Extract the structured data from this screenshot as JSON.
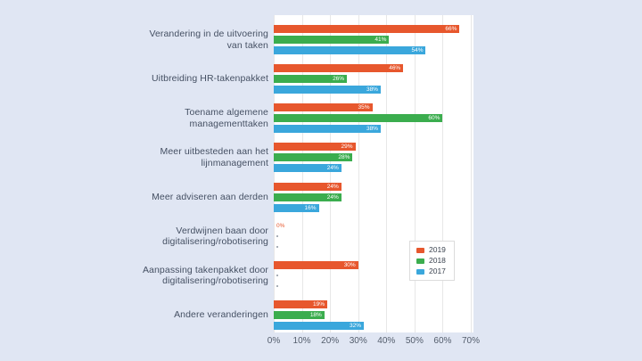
{
  "colors": {
    "background": "#e0e6f3",
    "plot_background": "#ffffff",
    "grid": "#e7e7e7",
    "series_2019": "#e7572d",
    "series_2018": "#3bad4e",
    "series_2017": "#3aa7dc",
    "category_text": "#455063",
    "axis_text": "#525c6b",
    "value_text": "#ffffff",
    "missing_mark": "#a9afb8"
  },
  "legend": {
    "items": [
      {
        "label": "2019",
        "color": "#e7572d"
      },
      {
        "label": "2018",
        "color": "#3bad4e"
      },
      {
        "label": "2017",
        "color": "#3aa7dc"
      }
    ]
  },
  "chart_data": {
    "type": "bar",
    "orientation": "horizontal",
    "title": "",
    "xlabel": "",
    "ylabel": "",
    "xlim": [
      0,
      70
    ],
    "grid": true,
    "legend_position": "right-lower",
    "value_suffix": "%",
    "x_tick_labels": [
      "0%",
      "10%",
      "20%",
      "30%",
      "40%",
      "50%",
      "60%",
      "70%"
    ],
    "categories": [
      "Verandering in de uitvoering van taken",
      "Uitbreiding HR-takenpakket",
      "Toename algemene managementtaken",
      "Meer uitbesteden aan het lijnmanagement",
      "Meer adviseren aan derden",
      "Verdwijnen baan door digitalisering/robotisering",
      "Aanpassing takenpakket door digitalisering/robotisering",
      "Andere veranderingen"
    ],
    "category_lines": [
      [
        "Verandering in de uitvoering",
        "van taken"
      ],
      [
        "Uitbreiding HR-takenpakket"
      ],
      [
        "Toename algemene",
        "managementtaken"
      ],
      [
        "Meer uitbesteden aan het",
        "lijnmanagement"
      ],
      [
        "Meer adviseren aan derden"
      ],
      [
        "Verdwijnen baan door",
        "digitalisering/robotisering"
      ],
      [
        "Aanpassing takenpakket door",
        "digitalisering/robotisering"
      ],
      [
        "Andere veranderingen"
      ]
    ],
    "series": [
      {
        "name": "2019",
        "color": "#e7572d",
        "values": [
          66,
          46,
          35,
          29,
          24,
          0,
          30,
          19
        ]
      },
      {
        "name": "2018",
        "color": "#3bad4e",
        "values": [
          41,
          26,
          60,
          28,
          24,
          null,
          null,
          18
        ]
      },
      {
        "name": "2017",
        "color": "#3aa7dc",
        "values": [
          54,
          38,
          38,
          24,
          16,
          null,
          null,
          32
        ]
      }
    ]
  }
}
